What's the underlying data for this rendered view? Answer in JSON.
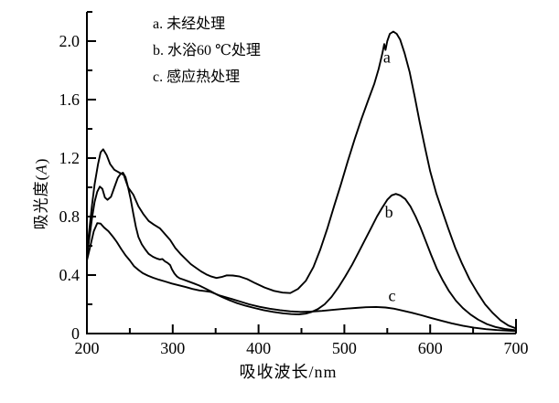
{
  "figure": {
    "background_color": "#ffffff",
    "line_color": "#000000"
  },
  "chart_data": {
    "type": "line",
    "title": "",
    "xlabel": "吸收波长/nm",
    "ylabel": "吸光度(A)",
    "ylabel_parts": [
      "吸光度(",
      "A",
      ")"
    ],
    "xlim": [
      200,
      700
    ],
    "ylim": [
      0,
      2.2
    ],
    "grid": false,
    "legend_position": "top-center-inside",
    "legend": [
      "a. 未经处理",
      "b. 水浴60 ℃处理",
      "c. 感应热处理"
    ],
    "x_major_ticks": [
      200,
      300,
      400,
      500,
      600,
      700
    ],
    "x_major_tick_labels": [
      "200",
      "300",
      "400",
      "500",
      "600",
      "700"
    ],
    "x_minor_ticks": [
      250,
      350,
      450,
      550,
      650
    ],
    "y_major_ticks": [
      0,
      0.4,
      0.8,
      1.2,
      1.6,
      2.0
    ],
    "y_major_tick_labels": [
      "0",
      "0.4",
      "0.8",
      "1.2",
      "1.6",
      "2.0"
    ],
    "y_minor_ticks": [
      0.2,
      0.6,
      1.0,
      1.4,
      1.8,
      2.2
    ],
    "curve_labels": [
      {
        "text": "a",
        "x": 549.5,
        "y": 1.89
      },
      {
        "text": "b",
        "x": 552.0,
        "y": 0.83
      },
      {
        "text": "c",
        "x": 555.5,
        "y": 0.26
      }
    ],
    "series": [
      {
        "name": "a",
        "label": "a. 未经处理",
        "peak_nm": 555,
        "peak_A": 2.06,
        "points": [
          [
            200,
            0.56
          ],
          [
            203,
            0.72
          ],
          [
            206,
            0.88
          ],
          [
            209,
            1.02
          ],
          [
            213,
            1.16
          ],
          [
            216,
            1.24
          ],
          [
            219,
            1.26
          ],
          [
            223,
            1.22
          ],
          [
            227,
            1.16
          ],
          [
            232,
            1.12
          ],
          [
            238,
            1.1
          ],
          [
            243,
            1.085
          ],
          [
            248,
            1.0
          ],
          [
            254,
            0.95
          ],
          [
            260,
            0.87
          ],
          [
            266,
            0.815
          ],
          [
            272,
            0.77
          ],
          [
            278,
            0.745
          ],
          [
            285,
            0.72
          ],
          [
            291,
            0.68
          ],
          [
            297,
            0.64
          ],
          [
            303,
            0.585
          ],
          [
            309,
            0.545
          ],
          [
            315,
            0.51
          ],
          [
            321,
            0.475
          ],
          [
            327,
            0.45
          ],
          [
            333,
            0.425
          ],
          [
            339,
            0.405
          ],
          [
            345,
            0.39
          ],
          [
            351,
            0.38
          ],
          [
            357,
            0.387
          ],
          [
            363,
            0.398
          ],
          [
            370,
            0.397
          ],
          [
            378,
            0.39
          ],
          [
            387,
            0.372
          ],
          [
            396,
            0.345
          ],
          [
            407,
            0.315
          ],
          [
            418,
            0.292
          ],
          [
            428,
            0.28
          ],
          [
            437,
            0.277
          ],
          [
            446,
            0.305
          ],
          [
            455,
            0.36
          ],
          [
            464,
            0.455
          ],
          [
            472,
            0.575
          ],
          [
            480,
            0.715
          ],
          [
            488,
            0.87
          ],
          [
            496,
            1.02
          ],
          [
            504,
            1.18
          ],
          [
            512,
            1.33
          ],
          [
            520,
            1.47
          ],
          [
            528,
            1.6
          ],
          [
            535,
            1.71
          ],
          [
            540,
            1.81
          ],
          [
            544,
            1.91
          ],
          [
            546.5,
            1.98
          ],
          [
            548,
            1.94
          ],
          [
            550,
            2.0
          ],
          [
            553,
            2.05
          ],
          [
            557,
            2.065
          ],
          [
            561,
            2.05
          ],
          [
            565,
            2.01
          ],
          [
            570,
            1.92
          ],
          [
            576,
            1.79
          ],
          [
            582,
            1.62
          ],
          [
            588,
            1.44
          ],
          [
            594,
            1.27
          ],
          [
            600,
            1.11
          ],
          [
            607,
            0.96
          ],
          [
            614,
            0.84
          ],
          [
            621,
            0.72
          ],
          [
            629,
            0.59
          ],
          [
            637,
            0.48
          ],
          [
            646,
            0.37
          ],
          [
            655,
            0.28
          ],
          [
            664,
            0.2
          ],
          [
            673,
            0.14
          ],
          [
            682,
            0.09
          ],
          [
            691,
            0.055
          ],
          [
            700,
            0.035
          ]
        ]
      },
      {
        "name": "b",
        "label": "b. 水浴60 ℃处理",
        "peak_nm": 555,
        "peak_A": 0.96,
        "points": [
          [
            200,
            0.53
          ],
          [
            203,
            0.66
          ],
          [
            206,
            0.79
          ],
          [
            209,
            0.9
          ],
          [
            212,
            0.97
          ],
          [
            215,
            1.005
          ],
          [
            218,
            0.99
          ],
          [
            221,
            0.93
          ],
          [
            224,
            0.915
          ],
          [
            228,
            0.935
          ],
          [
            232,
            1.0
          ],
          [
            236,
            1.065
          ],
          [
            239,
            1.09
          ],
          [
            242,
            1.1
          ],
          [
            245,
            1.07
          ],
          [
            248,
            1.0
          ],
          [
            251,
            0.92
          ],
          [
            254,
            0.82
          ],
          [
            257,
            0.73
          ],
          [
            260,
            0.66
          ],
          [
            264,
            0.61
          ],
          [
            268,
            0.575
          ],
          [
            272,
            0.545
          ],
          [
            277,
            0.525
          ],
          [
            282,
            0.512
          ],
          [
            285,
            0.507
          ],
          [
            288,
            0.51
          ],
          [
            291,
            0.493
          ],
          [
            294,
            0.483
          ],
          [
            297,
            0.468
          ],
          [
            299,
            0.44
          ],
          [
            302,
            0.41
          ],
          [
            305,
            0.39
          ],
          [
            308,
            0.378
          ],
          [
            313,
            0.368
          ],
          [
            319,
            0.355
          ],
          [
            325,
            0.342
          ],
          [
            331,
            0.328
          ],
          [
            338,
            0.308
          ],
          [
            344,
            0.29
          ],
          [
            351,
            0.268
          ],
          [
            358,
            0.248
          ],
          [
            366,
            0.228
          ],
          [
            375,
            0.208
          ],
          [
            385,
            0.19
          ],
          [
            395,
            0.175
          ],
          [
            406,
            0.16
          ],
          [
            417,
            0.148
          ],
          [
            428,
            0.139
          ],
          [
            438,
            0.133
          ],
          [
            447,
            0.131
          ],
          [
            455,
            0.136
          ],
          [
            462,
            0.148
          ],
          [
            469,
            0.167
          ],
          [
            477,
            0.2
          ],
          [
            485,
            0.25
          ],
          [
            493,
            0.315
          ],
          [
            501,
            0.39
          ],
          [
            509,
            0.47
          ],
          [
            517,
            0.56
          ],
          [
            524,
            0.64
          ],
          [
            531,
            0.72
          ],
          [
            538,
            0.8
          ],
          [
            544,
            0.86
          ],
          [
            550,
            0.915
          ],
          [
            555,
            0.945
          ],
          [
            560,
            0.955
          ],
          [
            565,
            0.945
          ],
          [
            571,
            0.92
          ],
          [
            577,
            0.87
          ],
          [
            583,
            0.8
          ],
          [
            589,
            0.72
          ],
          [
            595,
            0.63
          ],
          [
            601,
            0.54
          ],
          [
            608,
            0.44
          ],
          [
            615,
            0.36
          ],
          [
            622,
            0.29
          ],
          [
            630,
            0.225
          ],
          [
            638,
            0.175
          ],
          [
            647,
            0.13
          ],
          [
            656,
            0.095
          ],
          [
            666,
            0.065
          ],
          [
            676,
            0.045
          ],
          [
            687,
            0.032
          ],
          [
            700,
            0.022
          ]
        ]
      },
      {
        "name": "c",
        "label": "c. 感应热处理",
        "peak_nm": 537,
        "peak_A": 0.18,
        "points": [
          [
            200,
            0.5
          ],
          [
            204,
            0.6
          ],
          [
            208,
            0.7
          ],
          [
            212,
            0.755
          ],
          [
            216,
            0.752
          ],
          [
            220,
            0.725
          ],
          [
            225,
            0.7
          ],
          [
            230,
            0.665
          ],
          [
            235,
            0.625
          ],
          [
            240,
            0.578
          ],
          [
            245,
            0.535
          ],
          [
            250,
            0.5
          ],
          [
            255,
            0.46
          ],
          [
            260,
            0.435
          ],
          [
            265,
            0.413
          ],
          [
            271,
            0.396
          ],
          [
            277,
            0.382
          ],
          [
            284,
            0.368
          ],
          [
            291,
            0.356
          ],
          [
            299,
            0.342
          ],
          [
            307,
            0.33
          ],
          [
            315,
            0.318
          ],
          [
            323,
            0.305
          ],
          [
            331,
            0.295
          ],
          [
            338,
            0.29
          ],
          [
            344,
            0.285
          ],
          [
            354,
            0.262
          ],
          [
            365,
            0.243
          ],
          [
            377,
            0.222
          ],
          [
            389,
            0.2
          ],
          [
            401,
            0.183
          ],
          [
            413,
            0.17
          ],
          [
            425,
            0.16
          ],
          [
            437,
            0.152
          ],
          [
            449,
            0.148
          ],
          [
            461,
            0.15
          ],
          [
            474,
            0.155
          ],
          [
            488,
            0.163
          ],
          [
            501,
            0.17
          ],
          [
            513,
            0.175
          ],
          [
            525,
            0.18
          ],
          [
            537,
            0.182
          ],
          [
            548,
            0.178
          ],
          [
            558,
            0.17
          ],
          [
            568,
            0.157
          ],
          [
            579,
            0.142
          ],
          [
            590,
            0.125
          ],
          [
            601,
            0.107
          ],
          [
            613,
            0.088
          ],
          [
            625,
            0.07
          ],
          [
            638,
            0.054
          ],
          [
            651,
            0.04
          ],
          [
            665,
            0.03
          ],
          [
            678,
            0.024
          ],
          [
            690,
            0.02
          ],
          [
            700,
            0.017
          ]
        ]
      }
    ]
  }
}
